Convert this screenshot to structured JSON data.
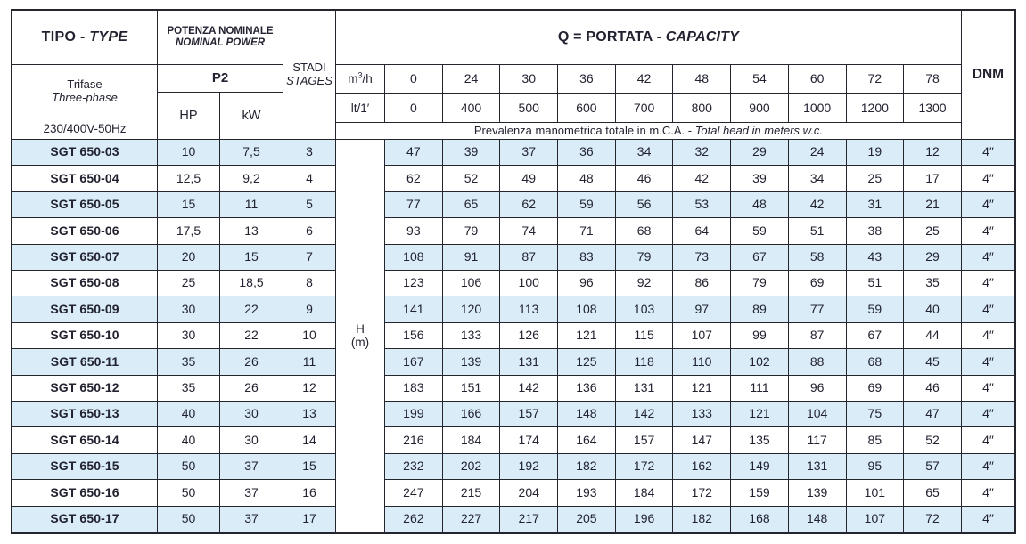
{
  "colors": {
    "row_alt": "#d9ecf8",
    "grid_line": "#25252e",
    "text": "#222230"
  },
  "header": {
    "tipo": {
      "bold": "TIPO - ",
      "italic": "TYPE"
    },
    "phase": {
      "line1": "Trifase",
      "line2": "Three-phase"
    },
    "voltage": "230/400V-50Hz",
    "power": {
      "line1": "POTENZA NOMINALE",
      "line2": "NOMINAL POWER",
      "p2": "P2",
      "hp": "HP",
      "kw": "kW"
    },
    "stages": {
      "line1": "STADI",
      "line2": "STAGES"
    },
    "capacity": {
      "bold": "Q = PORTATA - ",
      "italic": "CAPACITY"
    },
    "flow_units": {
      "m3h_pre": "m",
      "m3h_sup": "3",
      "m3h_post": "/h",
      "lt": "lt/1′"
    },
    "flow_m3h": [
      "0",
      "24",
      "30",
      "36",
      "42",
      "48",
      "54",
      "60",
      "72",
      "78"
    ],
    "flow_lt": [
      "0",
      "400",
      "500",
      "600",
      "700",
      "800",
      "900",
      "1000",
      "1200",
      "1300"
    ],
    "head_note": {
      "regular": "Prevalenza manometrica totale in m.C.A. - ",
      "italic": "Total head in meters w.c."
    },
    "dnm": "DNM",
    "h_unit": {
      "line1": "H",
      "line2": "(m)"
    }
  },
  "rows": [
    {
      "model": "SGT 650-03",
      "hp": "10",
      "kw": "7,5",
      "stages": "3",
      "heads": [
        "47",
        "39",
        "37",
        "36",
        "34",
        "32",
        "29",
        "24",
        "19",
        "12"
      ],
      "dnm": "4″"
    },
    {
      "model": "SGT 650-04",
      "hp": "12,5",
      "kw": "9,2",
      "stages": "4",
      "heads": [
        "62",
        "52",
        "49",
        "48",
        "46",
        "42",
        "39",
        "34",
        "25",
        "17"
      ],
      "dnm": "4″"
    },
    {
      "model": "SGT 650-05",
      "hp": "15",
      "kw": "11",
      "stages": "5",
      "heads": [
        "77",
        "65",
        "62",
        "59",
        "56",
        "53",
        "48",
        "42",
        "31",
        "21"
      ],
      "dnm": "4″"
    },
    {
      "model": "SGT 650-06",
      "hp": "17,5",
      "kw": "13",
      "stages": "6",
      "heads": [
        "93",
        "79",
        "74",
        "71",
        "68",
        "64",
        "59",
        "51",
        "38",
        "25"
      ],
      "dnm": "4″"
    },
    {
      "model": "SGT 650-07",
      "hp": "20",
      "kw": "15",
      "stages": "7",
      "heads": [
        "108",
        "91",
        "87",
        "83",
        "79",
        "73",
        "67",
        "58",
        "43",
        "29"
      ],
      "dnm": "4″"
    },
    {
      "model": "SGT 650-08",
      "hp": "25",
      "kw": "18,5",
      "stages": "8",
      "heads": [
        "123",
        "106",
        "100",
        "96",
        "92",
        "86",
        "79",
        "69",
        "51",
        "35"
      ],
      "dnm": "4″"
    },
    {
      "model": "SGT 650-09",
      "hp": "30",
      "kw": "22",
      "stages": "9",
      "heads": [
        "141",
        "120",
        "113",
        "108",
        "103",
        "97",
        "89",
        "77",
        "59",
        "40"
      ],
      "dnm": "4″"
    },
    {
      "model": "SGT 650-10",
      "hp": "30",
      "kw": "22",
      "stages": "10",
      "heads": [
        "156",
        "133",
        "126",
        "121",
        "115",
        "107",
        "99",
        "87",
        "67",
        "44"
      ],
      "dnm": "4″"
    },
    {
      "model": "SGT 650-11",
      "hp": "35",
      "kw": "26",
      "stages": "11",
      "heads": [
        "167",
        "139",
        "131",
        "125",
        "118",
        "110",
        "102",
        "88",
        "68",
        "45"
      ],
      "dnm": "4″"
    },
    {
      "model": "SGT 650-12",
      "hp": "35",
      "kw": "26",
      "stages": "12",
      "heads": [
        "183",
        "151",
        "142",
        "136",
        "131",
        "121",
        "111",
        "96",
        "69",
        "46"
      ],
      "dnm": "4″"
    },
    {
      "model": "SGT 650-13",
      "hp": "40",
      "kw": "30",
      "stages": "13",
      "heads": [
        "199",
        "166",
        "157",
        "148",
        "142",
        "133",
        "121",
        "104",
        "75",
        "47"
      ],
      "dnm": "4″"
    },
    {
      "model": "SGT 650-14",
      "hp": "40",
      "kw": "30",
      "stages": "14",
      "heads": [
        "216",
        "184",
        "174",
        "164",
        "157",
        "147",
        "135",
        "117",
        "85",
        "52"
      ],
      "dnm": "4″"
    },
    {
      "model": "SGT 650-15",
      "hp": "50",
      "kw": "37",
      "stages": "15",
      "heads": [
        "232",
        "202",
        "192",
        "182",
        "172",
        "162",
        "149",
        "131",
        "95",
        "57"
      ],
      "dnm": "4″"
    },
    {
      "model": "SGT 650-16",
      "hp": "50",
      "kw": "37",
      "stages": "16",
      "heads": [
        "247",
        "215",
        "204",
        "193",
        "184",
        "172",
        "159",
        "139",
        "101",
        "65"
      ],
      "dnm": "4″"
    },
    {
      "model": "SGT 650-17",
      "hp": "50",
      "kw": "37",
      "stages": "17",
      "heads": [
        "262",
        "227",
        "217",
        "205",
        "196",
        "182",
        "168",
        "148",
        "107",
        "72"
      ],
      "dnm": "4″"
    }
  ]
}
